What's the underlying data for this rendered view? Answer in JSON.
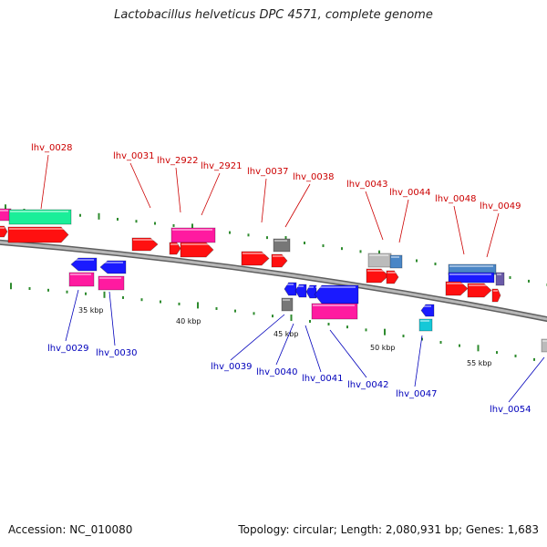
{
  "header": {
    "title": "Lactobacillus helveticus DPC 4571, complete genome"
  },
  "footer": {
    "accession": "Accession: NC_010080",
    "summary": "Topology: circular; Length: 2,080,931 bp; Genes: 1,683"
  },
  "colors": {
    "backbone": "#8a8a8a",
    "tick": "#2e8b2e",
    "plus_label": "#cc0000",
    "minus_label": "#0000bb",
    "red": "#ff1010",
    "magenta": "#ff1aa0",
    "blue": "#1a1aff",
    "green": "#1aee99",
    "gray": "#bbbbbb",
    "dark_gray": "#777777",
    "steel_blue": "#4a86c6",
    "cyan": "#15c8d8",
    "slate": "#6a5aa8"
  },
  "kbp_ticks": [
    "35 kbp",
    "40 kbp",
    "45 kbp",
    "50 kbp",
    "55 kbp"
  ],
  "genes_plus_strand": [
    "lhv_0028",
    "lhv_0031",
    "lhv_2922",
    "lhv_2921",
    "lhv_0037",
    "lhv_0038",
    "lhv_0043",
    "lhv_0044",
    "lhv_0048",
    "lhv_0049"
  ],
  "genes_minus_strand": [
    "lhv_0029",
    "lhv_0030",
    "lhv_0039",
    "lhv_0040",
    "lhv_0041",
    "lhv_0042",
    "lhv_0047",
    "lhv_0054"
  ]
}
